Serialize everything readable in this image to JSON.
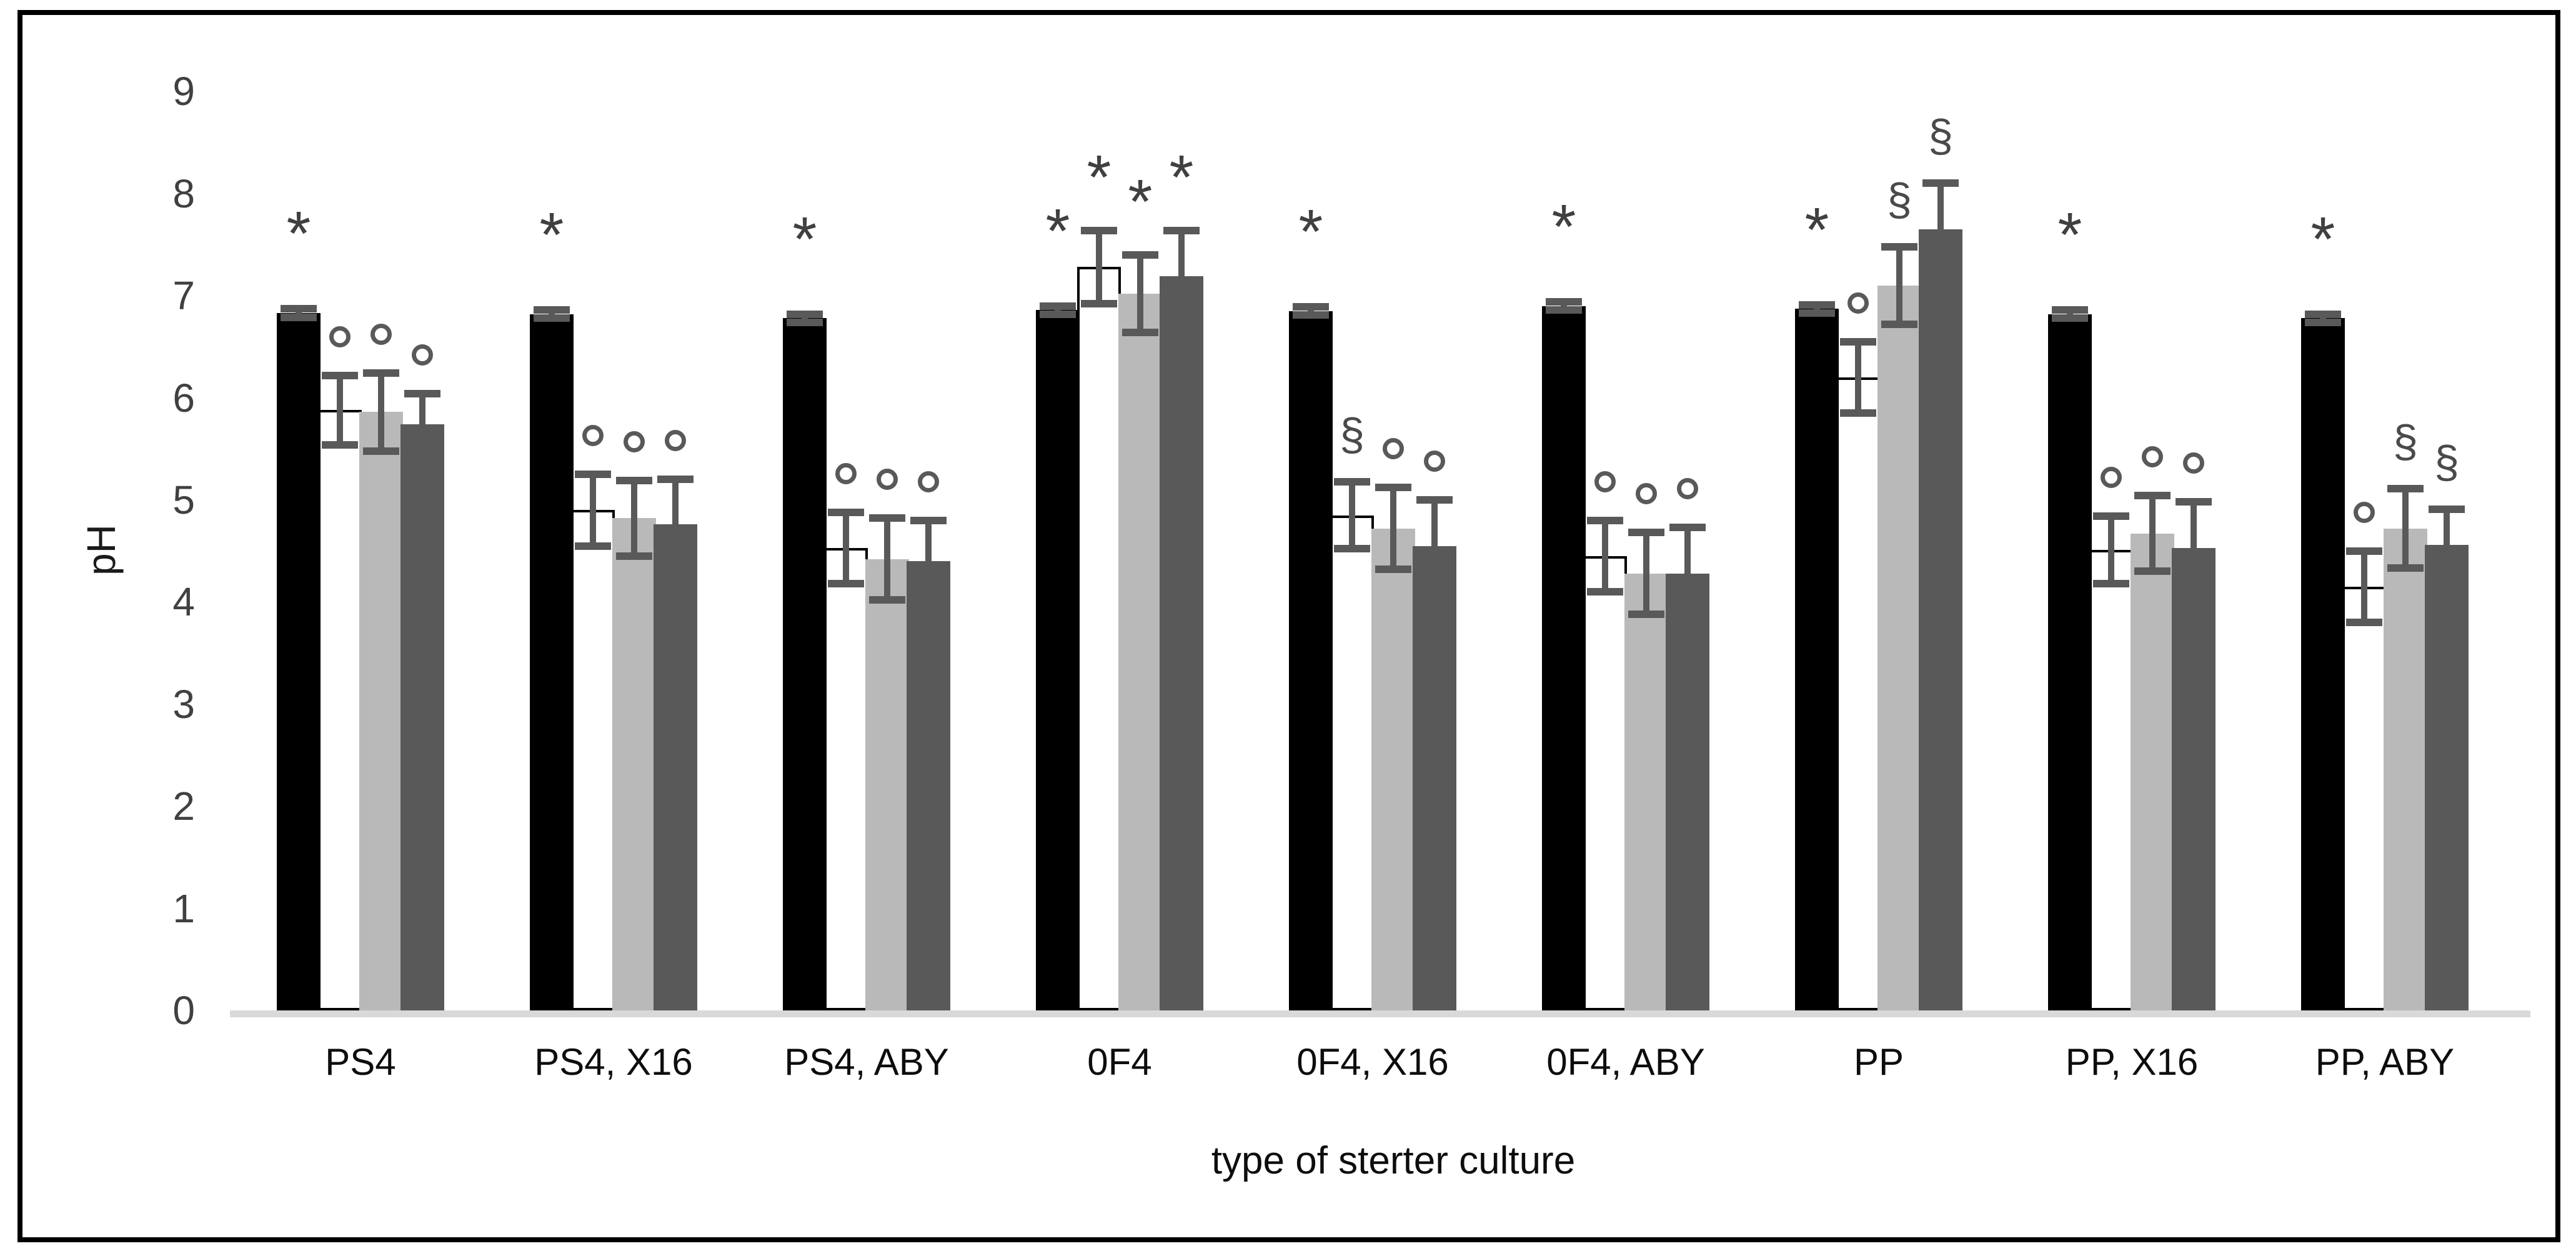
{
  "chart_data": {
    "type": "bar",
    "title": "",
    "xlabel": "type of sterter culture",
    "ylabel": "pH",
    "ylim": [
      0,
      9
    ],
    "yticks": [
      9,
      8,
      7,
      6,
      5,
      4,
      3,
      2,
      1,
      0
    ],
    "grid": false,
    "legend_position": "none",
    "categories": [
      "PS4",
      "PS4, X16",
      "PS4, ABY",
      "0F4",
      "0F4, X16",
      "0F4, ABY",
      "PP",
      "PP, X16",
      "PP, ABY"
    ],
    "series": [
      {
        "name": "black",
        "color": "#000000",
        "values": [
          6.83,
          6.82,
          6.78,
          6.86,
          6.85,
          6.9,
          6.87,
          6.82,
          6.78
        ],
        "errors": [
          0.04,
          0.04,
          0.04,
          0.04,
          0.04,
          0.04,
          0.04,
          0.04,
          0.04
        ],
        "annotations": [
          "*",
          "*",
          "*",
          "*",
          "*",
          "*",
          "*",
          "*",
          "*"
        ]
      },
      {
        "name": "white",
        "color": "#ffffff",
        "outline": "#000000",
        "values": [
          5.88,
          4.9,
          4.53,
          7.28,
          4.85,
          4.45,
          6.2,
          4.51,
          4.15
        ],
        "errors": [
          0.34,
          0.35,
          0.35,
          0.36,
          0.33,
          0.35,
          0.35,
          0.33,
          0.35
        ],
        "annotations": [
          "°",
          "°",
          "°",
          "*",
          "§",
          "°",
          "°",
          "°",
          "°"
        ]
      },
      {
        "name": "light-gray",
        "color": "#b9b9b9",
        "values": [
          5.86,
          4.82,
          4.42,
          7.02,
          4.72,
          4.28,
          7.1,
          4.67,
          4.72
        ],
        "errors": [
          0.38,
          0.37,
          0.4,
          0.38,
          0.4,
          0.4,
          0.38,
          0.37,
          0.39
        ],
        "annotations": [
          "°",
          "°",
          "°",
          "*",
          "°",
          "°",
          "§",
          "°",
          "§"
        ]
      },
      {
        "name": "dark-gray",
        "color": "#595959",
        "values": [
          5.74,
          4.76,
          4.4,
          7.19,
          4.55,
          4.28,
          7.65,
          4.53,
          4.56
        ],
        "errors": [
          0.3,
          0.44,
          0.4,
          0.45,
          0.45,
          0.45,
          0.45,
          0.45,
          0.35
        ],
        "annotations": [
          "°",
          "°",
          "°",
          "*",
          "°",
          "°",
          "§",
          "°",
          "§"
        ]
      }
    ],
    "annotation_symbols_used": [
      "*",
      "°",
      "§"
    ],
    "error_bar_color": "#595959",
    "axis_line_color": "#d9d9d9"
  }
}
